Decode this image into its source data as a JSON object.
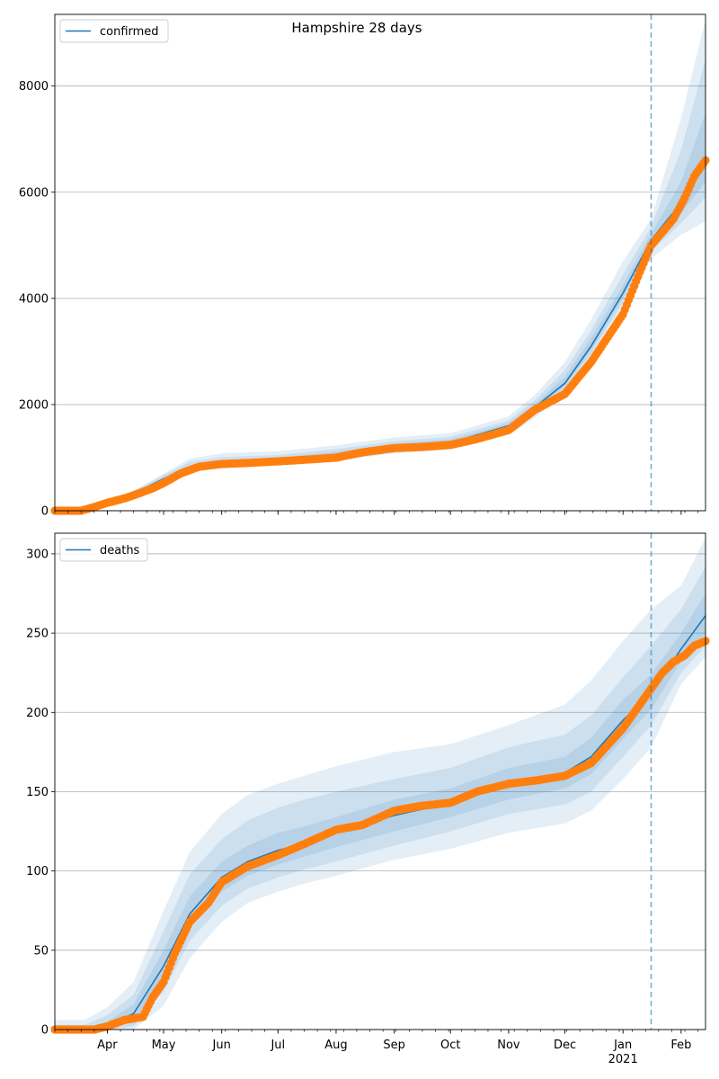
{
  "title": "Hampshire 28 days",
  "colors": {
    "model": "#1f77b4",
    "observed": "#ff7f0e",
    "band": "#1f77b4",
    "forecast_line": "#1f77b4",
    "grid": "#b0b0b0"
  },
  "x_axis": {
    "month_ticks": [
      {
        "label": "Apr",
        "date": "2020-04-01"
      },
      {
        "label": "May",
        "date": "2020-05-01"
      },
      {
        "label": "Jun",
        "date": "2020-06-01"
      },
      {
        "label": "Jul",
        "date": "2020-07-01"
      },
      {
        "label": "Aug",
        "date": "2020-08-01"
      },
      {
        "label": "Sep",
        "date": "2020-09-01"
      },
      {
        "label": "Oct",
        "date": "2020-10-01"
      },
      {
        "label": "Nov",
        "date": "2020-11-01"
      },
      {
        "label": "Dec",
        "date": "2020-12-01"
      },
      {
        "label": "Jan",
        "date": "2021-01-01"
      },
      {
        "label": "Feb",
        "date": "2021-02-01"
      }
    ],
    "year_label": "2021",
    "range": [
      "2020-03-04",
      "2021-02-14"
    ],
    "forecast_start": "2021-01-16"
  },
  "chart_data": [
    {
      "type": "line",
      "legend": "confirmed",
      "legend_position": "top-left",
      "grid": "y",
      "ylim": [
        0,
        9350
      ],
      "yticks": [
        "0",
        "2000",
        "4000",
        "6000",
        "8000"
      ],
      "model": {
        "x": [
          "2020-03-04",
          "2020-03-20",
          "2020-04-01",
          "2020-04-15",
          "2020-05-01",
          "2020-05-15",
          "2020-06-01",
          "2020-07-01",
          "2020-08-01",
          "2020-09-01",
          "2020-10-01",
          "2020-11-01",
          "2020-11-15",
          "2020-12-01",
          "2020-12-15",
          "2021-01-01",
          "2021-01-16",
          "2021-02-01",
          "2021-02-14"
        ],
        "y": [
          0,
          10,
          170,
          320,
          600,
          800,
          900,
          950,
          1050,
          1200,
          1280,
          1600,
          1950,
          2400,
          3100,
          4100,
          5100,
          5800,
          6650
        ]
      },
      "bands": [
        {
          "lower": [
            0,
            0,
            140,
            280,
            540,
            720,
            820,
            860,
            940,
            1080,
            1150,
            1430,
            1750,
            2200,
            2850,
            3800,
            4750,
            5200,
            5450
          ],
          "upper": [
            40,
            40,
            210,
            380,
            700,
            980,
            1080,
            1120,
            1230,
            1380,
            1460,
            1780,
            2180,
            2800,
            3600,
            4700,
            5500,
            7400,
            9250
          ]
        },
        {
          "lower": [
            0,
            0,
            150,
            295,
            560,
            760,
            860,
            900,
            990,
            1130,
            1200,
            1510,
            1840,
            2280,
            2950,
            3920,
            4880,
            5420,
            5900
          ],
          "upper": [
            25,
            25,
            195,
            360,
            670,
            920,
            1010,
            1050,
            1160,
            1310,
            1390,
            1700,
            2080,
            2650,
            3400,
            4450,
            5350,
            6800,
            8500
          ]
        },
        {
          "lower": [
            0,
            0,
            160,
            305,
            580,
            780,
            880,
            930,
            1020,
            1170,
            1250,
            1560,
            1900,
            2340,
            3020,
            4010,
            4980,
            5600,
            6200
          ],
          "upper": [
            15,
            15,
            180,
            340,
            640,
            860,
            950,
            1000,
            1110,
            1260,
            1340,
            1650,
            2010,
            2520,
            3250,
            4250,
            5220,
            6200,
            7500
          ]
        }
      ],
      "observed": {
        "x": [
          "2020-03-04",
          "2020-03-18",
          "2020-03-25",
          "2020-04-01",
          "2020-04-10",
          "2020-04-15",
          "2020-04-25",
          "2020-05-01",
          "2020-05-10",
          "2020-05-20",
          "2020-06-01",
          "2020-06-15",
          "2020-07-01",
          "2020-07-15",
          "2020-08-01",
          "2020-08-15",
          "2020-09-01",
          "2020-09-15",
          "2020-10-01",
          "2020-10-15",
          "2020-11-01",
          "2020-11-15",
          "2020-12-01",
          "2020-12-15",
          "2021-01-01",
          "2021-01-10",
          "2021-01-16",
          "2021-01-22",
          "2021-01-28",
          "2021-02-03",
          "2021-02-08",
          "2021-02-14"
        ],
        "y": [
          0,
          0,
          70,
          150,
          230,
          290,
          420,
          520,
          700,
          830,
          880,
          900,
          930,
          960,
          1000,
          1100,
          1180,
          1200,
          1240,
          1350,
          1520,
          1900,
          2200,
          2800,
          3700,
          4500,
          5000,
          5250,
          5500,
          5900,
          6300,
          6600
        ]
      }
    },
    {
      "type": "line",
      "legend": "deaths",
      "legend_position": "top-left",
      "grid": "y",
      "ylim": [
        0,
        313
      ],
      "yticks": [
        "0",
        "50",
        "100",
        "150",
        "200",
        "250",
        "300"
      ],
      "model": {
        "x": [
          "2020-03-04",
          "2020-03-20",
          "2020-04-01",
          "2020-04-15",
          "2020-05-01",
          "2020-05-15",
          "2020-06-01",
          "2020-06-15",
          "2020-07-01",
          "2020-07-15",
          "2020-08-01",
          "2020-09-01",
          "2020-10-01",
          "2020-11-01",
          "2020-12-01",
          "2020-12-15",
          "2021-01-01",
          "2021-01-16",
          "2021-02-01",
          "2021-02-14"
        ],
        "y": [
          0,
          0,
          3,
          10,
          40,
          73,
          96,
          106,
          113,
          117,
          124,
          135,
          143,
          155,
          162,
          172,
          195,
          212,
          240,
          261
        ]
      },
      "bands": [
        {
          "lower": [
            0,
            0,
            0,
            0,
            15,
            45,
            68,
            80,
            87,
            92,
            97,
            107,
            114,
            124,
            130,
            138,
            158,
            178,
            218,
            235
          ],
          "upper": [
            6,
            6,
            14,
            30,
            75,
            112,
            136,
            148,
            155,
            160,
            166,
            175,
            180,
            192,
            205,
            220,
            245,
            265,
            280,
            310
          ]
        },
        {
          "lower": [
            0,
            0,
            0,
            2,
            24,
            56,
            78,
            89,
            96,
            101,
            106,
            116,
            125,
            136,
            142,
            150,
            172,
            192,
            225,
            242
          ],
          "upper": [
            3,
            3,
            9,
            22,
            62,
            98,
            120,
            132,
            140,
            145,
            150,
            158,
            165,
            178,
            186,
            198,
            222,
            242,
            265,
            292
          ]
        },
        {
          "lower": [
            0,
            0,
            1,
            5,
            32,
            64,
            87,
            97,
            104,
            109,
            115,
            125,
            134,
            145,
            152,
            161,
            183,
            202,
            232,
            250
          ],
          "upper": [
            1,
            1,
            5,
            16,
            50,
            84,
            106,
            116,
            124,
            128,
            134,
            145,
            152,
            165,
            172,
            184,
            208,
            224,
            250,
            275
          ]
        }
      ],
      "observed": {
        "x": [
          "2020-03-04",
          "2020-03-25",
          "2020-04-01",
          "2020-04-10",
          "2020-04-20",
          "2020-04-25",
          "2020-05-01",
          "2020-05-07",
          "2020-05-15",
          "2020-05-25",
          "2020-06-01",
          "2020-06-15",
          "2020-07-01",
          "2020-07-15",
          "2020-08-01",
          "2020-08-15",
          "2020-09-01",
          "2020-09-15",
          "2020-10-01",
          "2020-10-15",
          "2020-11-01",
          "2020-11-15",
          "2020-12-01",
          "2020-12-15",
          "2021-01-01",
          "2021-01-10",
          "2021-01-16",
          "2021-01-22",
          "2021-01-28",
          "2021-02-03",
          "2021-02-08",
          "2021-02-14"
        ],
        "y": [
          0,
          0,
          2,
          6,
          8,
          20,
          30,
          48,
          68,
          80,
          93,
          103,
          110,
          117,
          126,
          129,
          138,
          141,
          143,
          150,
          155,
          157,
          160,
          168,
          190,
          205,
          215,
          225,
          232,
          236,
          242,
          245
        ]
      }
    }
  ]
}
